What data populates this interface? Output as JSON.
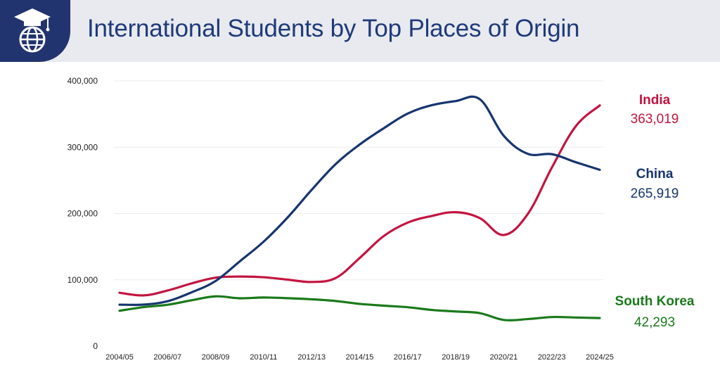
{
  "header": {
    "title": "International Students by Top Places of Origin",
    "background": "#e8eaef",
    "logo_color": "#21346f",
    "logo_icon": "graduation-globe-icon"
  },
  "chart_data": {
    "type": "line",
    "title": "International Students by Top Places of Origin",
    "xlabel": "",
    "ylabel": "",
    "ylim": [
      0,
      400000
    ],
    "yticks": [
      0,
      100000,
      200000,
      300000,
      400000
    ],
    "ytick_labels": [
      "0",
      "100,000",
      "200,000",
      "300,000",
      "400,000"
    ],
    "x": [
      "2004/05",
      "2005/06",
      "2006/07",
      "2007/08",
      "2008/09",
      "2009/10",
      "2010/11",
      "2011/12",
      "2012/13",
      "2013/14",
      "2014/15",
      "2015/16",
      "2016/17",
      "2017/18",
      "2018/19",
      "2019/20",
      "2020/21",
      "2021/22",
      "2022/23",
      "2023/24",
      "2024/25"
    ],
    "xtick_labels": [
      "2004/05",
      "2006/07",
      "2008/09",
      "2010/11",
      "2012/13",
      "2014/15",
      "2016/17",
      "2018/19",
      "2020/21",
      "2022/23",
      "2024/25"
    ],
    "grid": true,
    "series": [
      {
        "name": "India",
        "end_label": "363,019",
        "color": "#c3143f",
        "values": [
          80466,
          76503,
          83833,
          94563,
          103260,
          104897,
          103895,
          100270,
          96754,
          102673,
          132888,
          165918,
          186267,
          196271,
          202014,
          193124,
          167582,
          199182,
          268923,
          331602,
          363019
        ]
      },
      {
        "name": "China",
        "end_label": "265,919",
        "color": "#16356f",
        "values": [
          62523,
          62582,
          67723,
          81127,
          98235,
          127628,
          157558,
          194029,
          235597,
          274439,
          304040,
          328547,
          350755,
          363341,
          369548,
          372532,
          317299,
          290086,
          289526,
          277398,
          265919
        ]
      },
      {
        "name": "South Korea",
        "end_label": "42,293",
        "color": "#1a7a1a",
        "values": [
          53358,
          58847,
          62392,
          69124,
          75065,
          72153,
          73351,
          72295,
          70627,
          68047,
          63710,
          61007,
          58663,
          54555,
          52250,
          49809,
          39491,
          40755,
          43847,
          43149,
          42293
        ]
      }
    ]
  }
}
